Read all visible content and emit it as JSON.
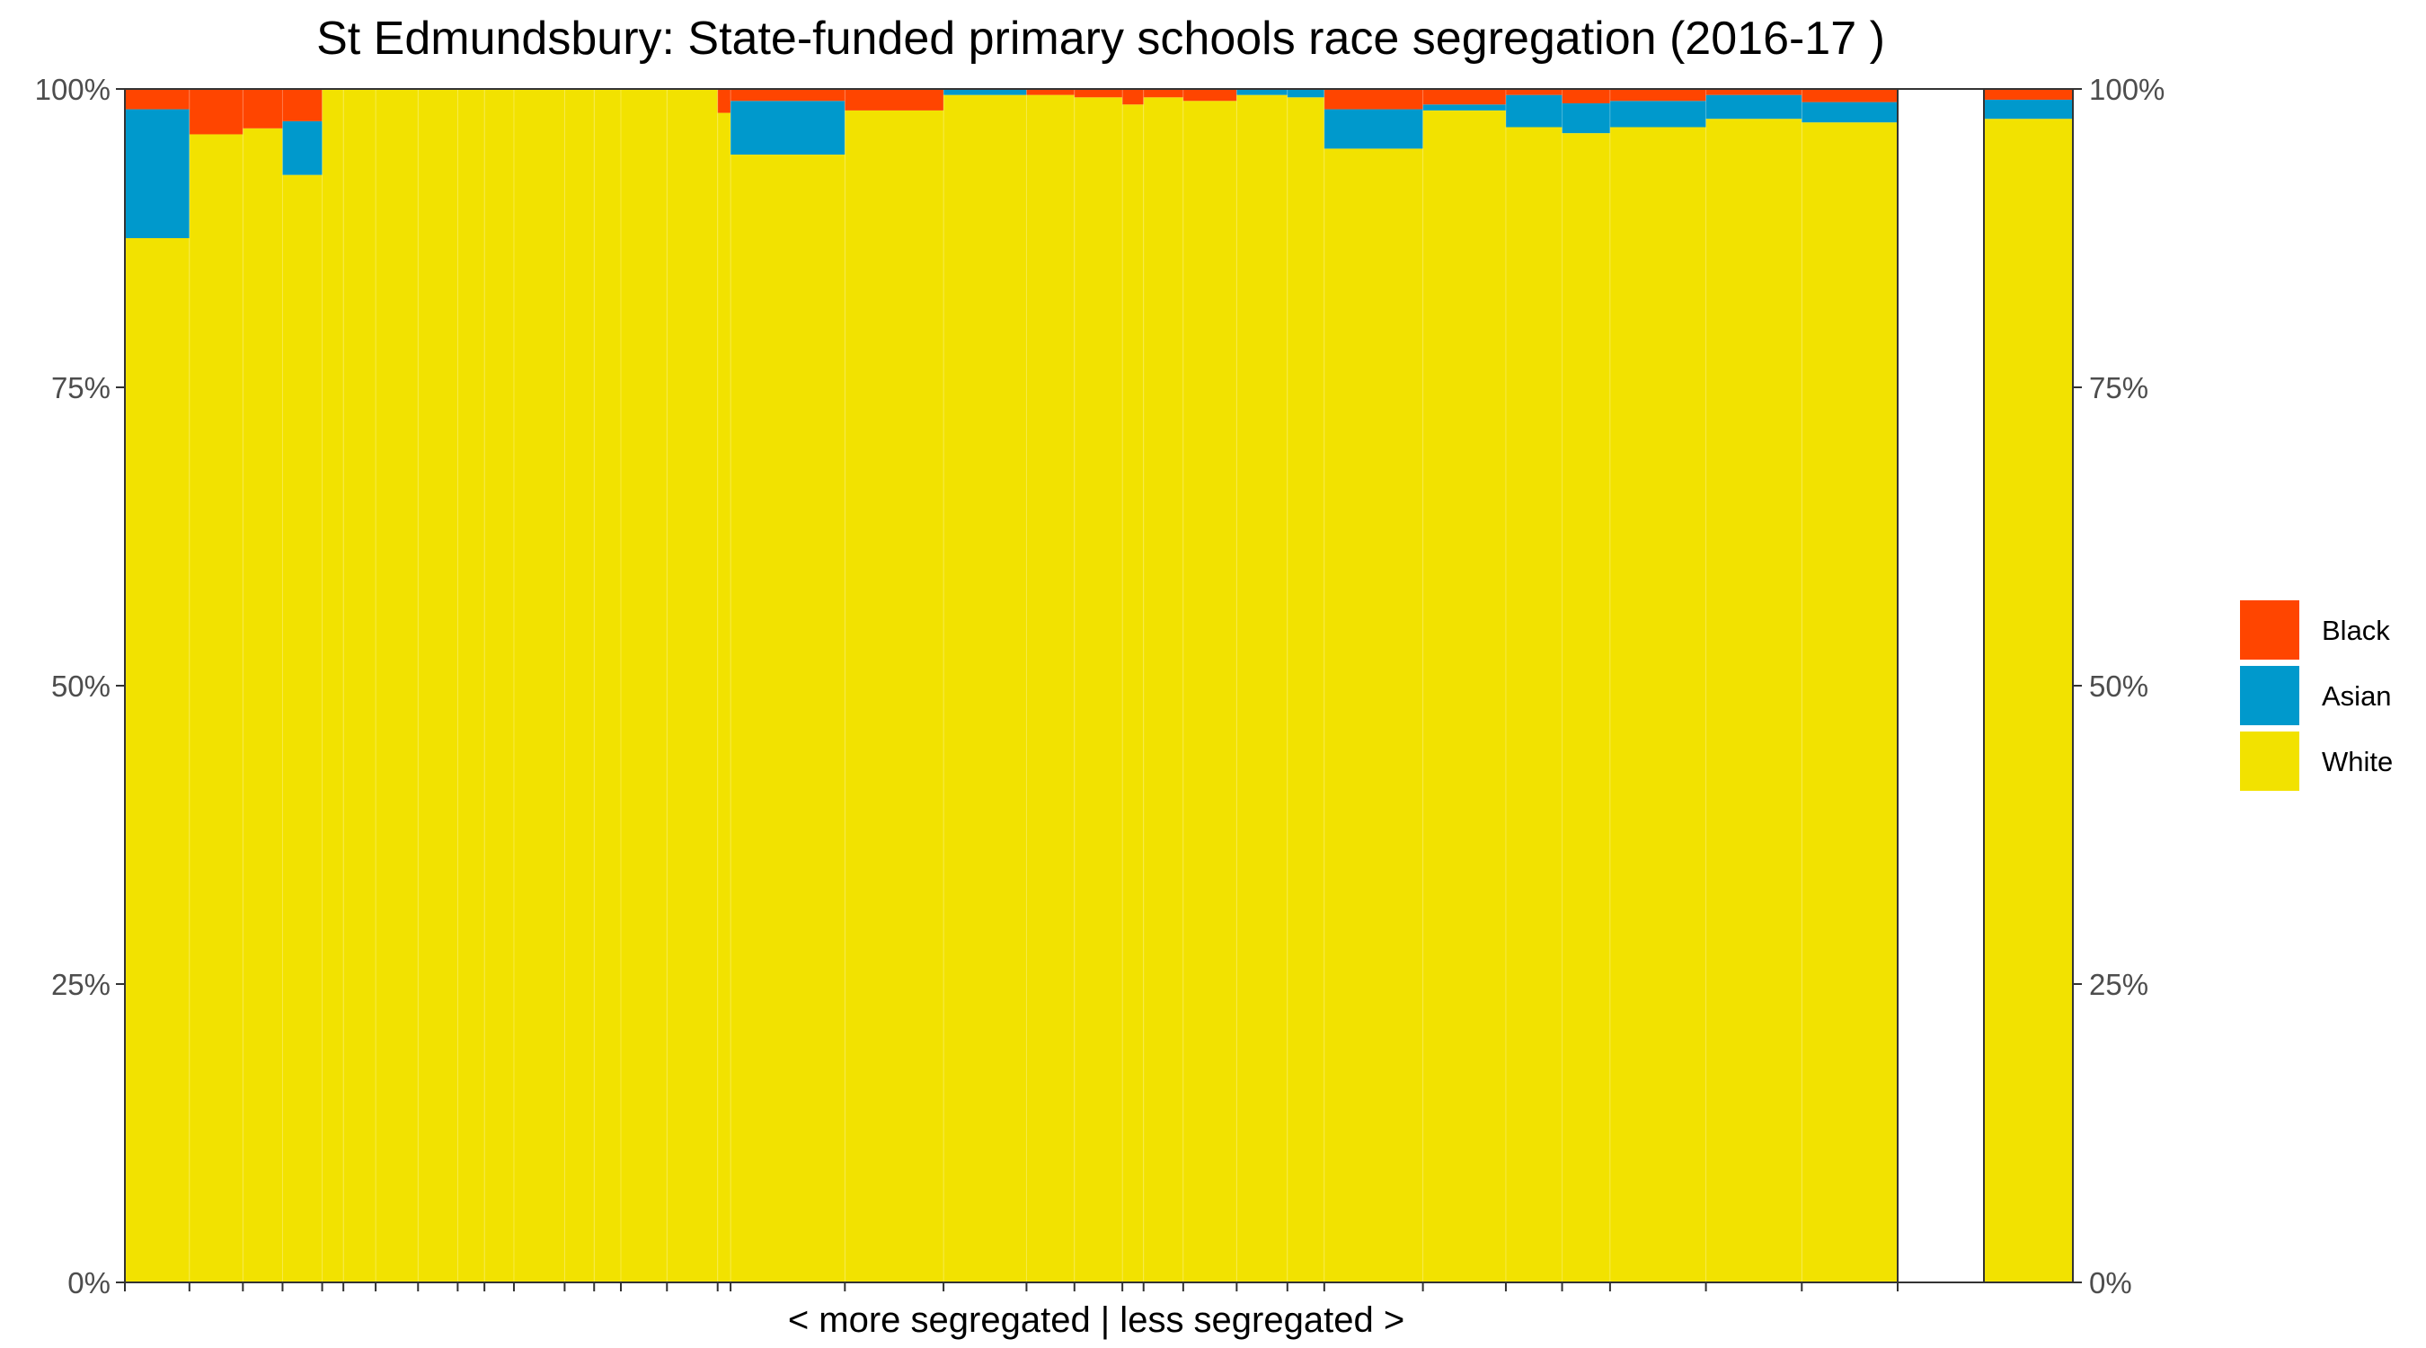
{
  "chart_data": {
    "type": "bar",
    "title": "St Edmundsbury: State-funded primary schools race segregation (2016-17 )",
    "xlabel": "< more segregated | less segregated >",
    "ylabel": "",
    "ylim": [
      0,
      1
    ],
    "y_ticks": [
      "0%",
      "25%",
      "50%",
      "75%",
      "100%"
    ],
    "legend": {
      "position": "right",
      "entries": [
        "Black",
        "Asian",
        "White"
      ]
    },
    "colors": {
      "Black": "#FF4500",
      "Asian": "#0099CC",
      "White": "#F2E200"
    },
    "stack_order": [
      "White",
      "Asian",
      "Black"
    ],
    "schools": [
      {
        "width": 7.0,
        "White": 0.875,
        "Asian": 0.108,
        "Black": 0.017
      },
      {
        "width": 5.8,
        "White": 0.962,
        "Asian": 0.0,
        "Black": 0.038
      },
      {
        "width": 4.3,
        "White": 0.967,
        "Asian": 0.0,
        "Black": 0.033
      },
      {
        "width": 4.3,
        "White": 0.928,
        "Asian": 0.045,
        "Black": 0.027
      },
      {
        "width": 2.3,
        "White": 1.0,
        "Asian": 0.0,
        "Black": 0.0
      },
      {
        "width": 3.5,
        "White": 1.0,
        "Asian": 0.0,
        "Black": 0.0
      },
      {
        "width": 4.6,
        "White": 1.0,
        "Asian": 0.0,
        "Black": 0.0
      },
      {
        "width": 4.3,
        "White": 1.0,
        "Asian": 0.0,
        "Black": 0.0
      },
      {
        "width": 2.9,
        "White": 1.0,
        "Asian": 0.0,
        "Black": 0.0
      },
      {
        "width": 3.2,
        "White": 1.0,
        "Asian": 0.0,
        "Black": 0.0
      },
      {
        "width": 5.5,
        "White": 1.0,
        "Asian": 0.0,
        "Black": 0.0
      },
      {
        "width": 3.2,
        "White": 1.0,
        "Asian": 0.0,
        "Black": 0.0
      },
      {
        "width": 2.9,
        "White": 1.0,
        "Asian": 0.0,
        "Black": 0.0
      },
      {
        "width": 5.0,
        "White": 1.0,
        "Asian": 0.0,
        "Black": 0.0
      },
      {
        "width": 5.5,
        "White": 1.0,
        "Asian": 0.0,
        "Black": 0.0
      },
      {
        "width": 1.4,
        "White": 0.98,
        "Asian": 0.0,
        "Black": 0.02
      },
      {
        "width": 12.4,
        "White": 0.945,
        "Asian": 0.045,
        "Black": 0.01
      },
      {
        "width": 10.7,
        "White": 0.982,
        "Asian": 0.0,
        "Black": 0.018
      },
      {
        "width": 9.0,
        "White": 0.995,
        "Asian": 0.005,
        "Black": 0.0
      },
      {
        "width": 5.2,
        "White": 0.995,
        "Asian": 0.0,
        "Black": 0.005
      },
      {
        "width": 5.2,
        "White": 0.993,
        "Asian": 0.0,
        "Black": 0.007
      },
      {
        "width": 2.3,
        "White": 0.987,
        "Asian": 0.0,
        "Black": 0.013
      },
      {
        "width": 4.3,
        "White": 0.993,
        "Asian": 0.0,
        "Black": 0.007
      },
      {
        "width": 5.8,
        "White": 0.99,
        "Asian": 0.0,
        "Black": 0.01
      },
      {
        "width": 5.5,
        "White": 0.995,
        "Asian": 0.005,
        "Black": 0.0
      },
      {
        "width": 4.0,
        "White": 0.993,
        "Asian": 0.007,
        "Black": 0.0
      },
      {
        "width": 10.7,
        "White": 0.95,
        "Asian": 0.033,
        "Black": 0.017
      },
      {
        "width": 9.0,
        "White": 0.982,
        "Asian": 0.005,
        "Black": 0.013
      },
      {
        "width": 6.1,
        "White": 0.968,
        "Asian": 0.027,
        "Black": 0.005
      },
      {
        "width": 5.2,
        "White": 0.963,
        "Asian": 0.025,
        "Black": 0.012
      },
      {
        "width": 10.4,
        "White": 0.968,
        "Asian": 0.022,
        "Black": 0.01
      },
      {
        "width": 10.4,
        "White": 0.975,
        "Asian": 0.02,
        "Black": 0.005
      },
      {
        "width": 10.4,
        "White": 0.972,
        "Asian": 0.017,
        "Black": 0.011
      }
    ],
    "overall": {
      "White": 0.975,
      "Asian": 0.016,
      "Black": 0.009
    }
  }
}
